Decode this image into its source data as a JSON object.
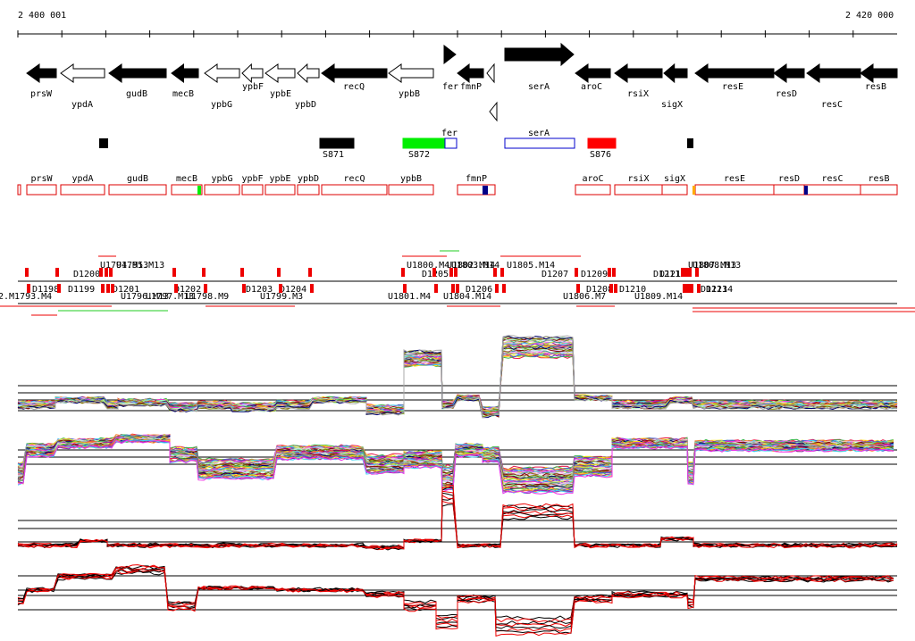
{
  "ruler": {
    "start": "2 400 001",
    "end": "2 420 000"
  },
  "genes_top": [
    {
      "name": "prsW",
      "filled": true
    },
    {
      "name": "ypdA",
      "filled": false
    },
    {
      "name": "gudB",
      "filled": true
    },
    {
      "name": "mecB",
      "filled": true
    },
    {
      "name": "ypbG",
      "filled": false
    },
    {
      "name": "ypbF",
      "filled": false
    },
    {
      "name": "ypbE",
      "filled": false
    },
    {
      "name": "ypbD",
      "filled": false
    },
    {
      "name": "recQ",
      "filled": true
    },
    {
      "name": "ypbB",
      "filled": false
    },
    {
      "name": "fer",
      "filled": true
    },
    {
      "name": "fmnP",
      "filled": true
    },
    {
      "name": "serA",
      "filled": true
    },
    {
      "name": "aroC",
      "filled": true
    },
    {
      "name": "rsiX",
      "filled": true
    },
    {
      "name": "sigX",
      "filled": true
    },
    {
      "name": "resE",
      "filled": true
    },
    {
      "name": "resD",
      "filled": true
    },
    {
      "name": "resC",
      "filled": true
    },
    {
      "name": "resB",
      "filled": true
    }
  ],
  "features": [
    {
      "label": "S871",
      "color": "#000000"
    },
    {
      "label": "S872",
      "color": "#00ee00"
    },
    {
      "label": "fer",
      "color": "#ffffff"
    },
    {
      "label": "serA",
      "color": "#ffffff"
    },
    {
      "label": "S876",
      "color": "#ff0000"
    }
  ],
  "transcripts": [
    "prsW",
    "ypdA",
    "gudB",
    "mecB",
    "ypbG",
    "ypbF",
    "ypbE",
    "ypbD",
    "recQ",
    "ypbB",
    "fmnP",
    "aroC",
    "rsiX",
    "sigX",
    "resE",
    "resD",
    "resC",
    "resB"
  ],
  "segment_labels": [
    "D1200",
    "U1794.M13",
    "U1795.M13",
    "D1198",
    "D1199",
    "D1201",
    "U1796.M13",
    "U1797.M13",
    "D1202",
    "U1798.M9",
    "2.M1793.M4",
    "D1203",
    "D1204",
    "U1799.M3",
    "U1800.M4",
    "D1205",
    "U1802.M14",
    "U1803.M14",
    "U1801.M4",
    "D1206",
    "U1804.M14",
    "U1805.M14",
    "D1207",
    "D1209",
    "D1208",
    "U1806.M7",
    "D1210",
    "U1809.M14",
    "D1211",
    "D1212",
    "U1807.M13",
    "U1808.M13",
    "D1213",
    "D1214"
  ],
  "colors": {
    "gene": "#000000",
    "transcript": "#dd0000",
    "red": "#ee0000",
    "green": "#00ee00",
    "blue": "#0000cc"
  }
}
